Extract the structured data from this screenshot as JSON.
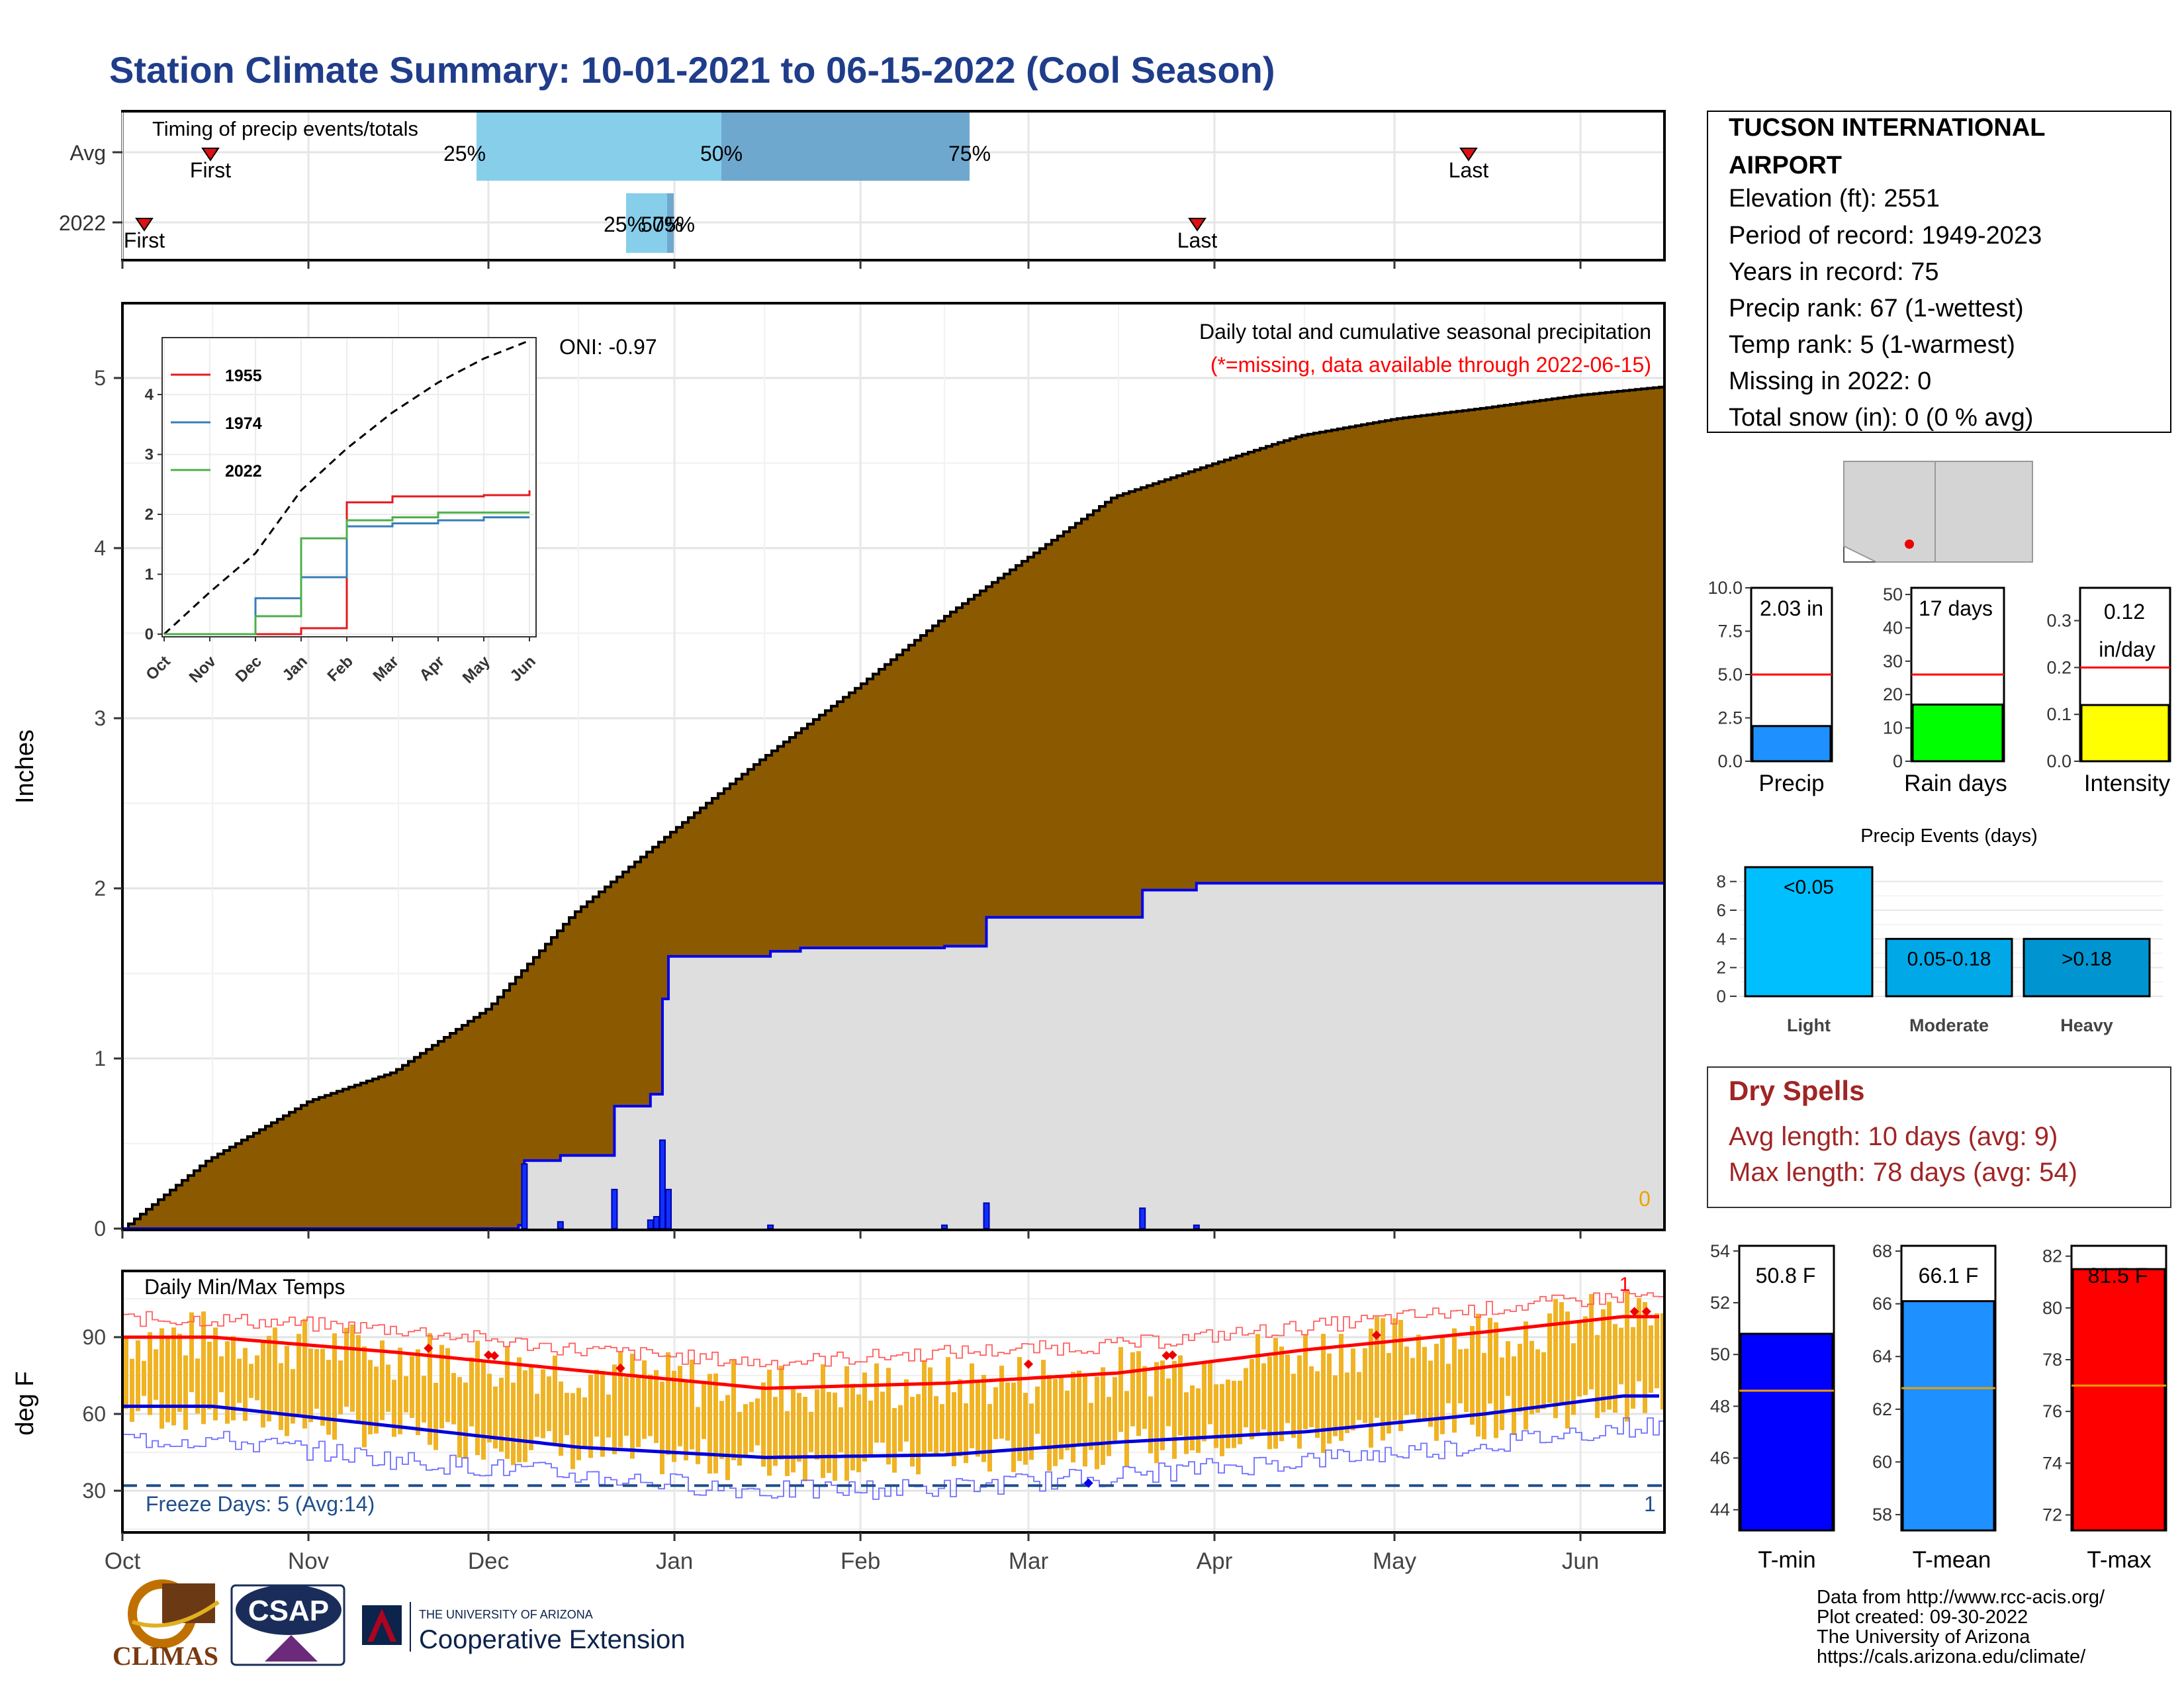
{
  "title": "Station Climate Summary: 10-01-2021 to 06-15-2022 (Cool Season)",
  "timing_panel": {
    "label": "Timing of precip events/totals",
    "rows": [
      "Avg",
      "2022"
    ],
    "avg": {
      "first_label": "First",
      "last_label": "Last",
      "p25_label": "25%",
      "p50_label": "50%",
      "p75_label": "75%"
    },
    "y2022": {
      "first_label": "First",
      "last_label": "Last",
      "p25_label": "25%",
      "p50_label": "50%",
      "p75_label": "75%"
    },
    "colors": {
      "light": "#87ceeb",
      "dark": "#6fa8cf",
      "marker": "#e01010"
    }
  },
  "station": {
    "name": "TUCSON INTERNATIONAL AIRPORT",
    "elevation": "Elevation (ft): 2551",
    "period": "Period of record: 1949-2023",
    "years": "Years in record: 75",
    "precip_rank": "Precip rank: 67 (1-wettest)",
    "temp_rank": "Temp rank: 5 (1-warmest)",
    "missing": "Missing in 2022: 0",
    "snow": "Total snow (in): 0 (0 % avg)"
  },
  "precip_panel": {
    "ylabel": "Inches",
    "yticks": [
      "0",
      "1",
      "2",
      "3",
      "4",
      "5"
    ],
    "note1": "Daily total and cumulative seasonal precipitation",
    "note2": "(*=missing, data available through 2022-06-15)",
    "oni": "ONI: -0.97",
    "zero_label": "0",
    "colors": {
      "avg_fill": "#8b5a00",
      "year_fill": "#dedede",
      "year_line": "#0000ee"
    }
  },
  "inset": {
    "xticks": [
      "Oct",
      "Nov",
      "Dec",
      "Jan",
      "Feb",
      "Mar",
      "Apr",
      "May",
      "Jun"
    ],
    "yticks": [
      "0",
      "1",
      "2",
      "3",
      "4"
    ],
    "legend": [
      "1955",
      "1974",
      "2022"
    ],
    "colors": {
      "1955": "#e41a1c",
      "1974": "#377eb8",
      "2022": "#4daf4a"
    }
  },
  "temp_panel": {
    "label": "Daily Min/Max Temps",
    "ylabel": "deg F",
    "yticks": [
      "30",
      "60",
      "90"
    ],
    "freeze": "Freeze Days: 5 (Avg:14)",
    "left_count": "1",
    "right_count": "1",
    "colors": {
      "bars": "#f0b323",
      "max_avg": "#ff0000",
      "min_avg": "#0000dd",
      "freeze": "#1f4e8c"
    }
  },
  "month_ticks": [
    "Oct",
    "Nov",
    "Dec",
    "Jan",
    "Feb",
    "Mar",
    "Apr",
    "May",
    "Jun"
  ],
  "mini_bars": {
    "precip": {
      "label": "Precip",
      "value_text": "2.03 in",
      "yticks": [
        "0.0",
        "2.5",
        "5.0",
        "7.5",
        "10.0"
      ],
      "color": "#1e90ff"
    },
    "rain_days": {
      "label": "Rain days",
      "value_text": "17 days",
      "yticks": [
        "0",
        "10",
        "20",
        "30",
        "40",
        "50"
      ],
      "color": "#00ff00"
    },
    "intensity": {
      "label": "Intensity",
      "value_text_1": "0.12",
      "value_text_2": "in/day",
      "yticks": [
        "0.0",
        "0.1",
        "0.2",
        "0.3"
      ],
      "color": "#ffff00"
    }
  },
  "events": {
    "title": "Precip Events (days)",
    "yticks": [
      "0",
      "2",
      "4",
      "6",
      "8"
    ],
    "categories": [
      "Light",
      "Moderate",
      "Heavy"
    ],
    "bar_labels": [
      "<0.05",
      "0.05-0.18",
      ">0.18"
    ],
    "colors": [
      "#00bfff",
      "#00a8e8",
      "#0095d0"
    ]
  },
  "dry_spells": {
    "title": "Dry Spells",
    "avg": "Avg length: 10 days (avg: 9)",
    "max": "Max length: 78 days (avg: 54)",
    "color": "#a02525"
  },
  "temp_bars": {
    "tmin": {
      "label": "T-min",
      "value_text": "50.8 F",
      "yticks": [
        "44",
        "46",
        "48",
        "50",
        "52",
        "54"
      ],
      "color": "#0000ff"
    },
    "tmean": {
      "label": "T-mean",
      "value_text": "66.1 F",
      "yticks": [
        "58",
        "60",
        "62",
        "64",
        "66",
        "68"
      ],
      "color": "#1e90ff"
    },
    "tmax": {
      "label": "T-max",
      "value_text": "81.5 F",
      "yticks": [
        "72",
        "74",
        "76",
        "78",
        "80",
        "82"
      ],
      "color": "#ff0000"
    }
  },
  "footer": {
    "line1": "Data from http://www.rcc-acis.org/",
    "line2": "Plot created: 09-30-2022",
    "line3": "The University of Arizona",
    "line4": "https://cals.arizona.edu/climate/",
    "logo_climas": "CLIMAS",
    "logo_csap": "CSAP",
    "logo_ua_small": "THE UNIVERSITY OF ARIZONA",
    "logo_ua_big": "Cooperative Extension"
  },
  "chart_data": [
    {
      "type": "area",
      "title": "Daily total and cumulative seasonal precipitation",
      "ylabel": "Inches",
      "x_range": [
        "2021-10-01",
        "2022-06-15"
      ],
      "ylim": [
        0,
        5.5
      ],
      "series": [
        {
          "name": "Avg",
          "x": [
            "2021-10-01",
            "2021-10-15",
            "2021-11-01",
            "2021-11-15",
            "2021-12-01",
            "2021-12-15",
            "2022-01-01",
            "2022-01-15",
            "2022-02-01",
            "2022-02-15",
            "2022-03-01",
            "2022-03-15",
            "2022-04-01",
            "2022-04-15",
            "2022-05-01",
            "2022-05-15",
            "2022-06-01",
            "2022-06-15"
          ],
          "values": [
            0.0,
            0.4,
            0.75,
            0.92,
            1.3,
            1.85,
            2.35,
            2.75,
            3.2,
            3.6,
            3.95,
            4.3,
            4.5,
            4.66,
            4.76,
            4.82,
            4.9,
            4.95
          ]
        },
        {
          "name": "2022",
          "x": [
            "2021-10-01",
            "2021-12-06",
            "2021-12-07",
            "2021-12-13",
            "2021-12-22",
            "2021-12-28",
            "2021-12-30",
            "2021-12-31",
            "2022-01-17",
            "2022-01-22",
            "2022-02-15",
            "2022-02-22",
            "2022-03-20",
            "2022-03-29",
            "2022-06-15"
          ],
          "values": [
            0.0,
            0.02,
            0.4,
            0.43,
            0.72,
            0.79,
            1.35,
            1.6,
            1.63,
            1.65,
            1.66,
            1.83,
            1.99,
            2.03,
            2.03
          ]
        }
      ],
      "daily_bars": {
        "x": [
          "2021-12-07",
          "2021-12-13",
          "2021-12-22",
          "2021-12-28",
          "2021-12-29",
          "2021-12-30",
          "2021-12-31",
          "2022-01-17",
          "2022-02-15",
          "2022-02-22",
          "2022-03-20",
          "2022-03-29"
        ],
        "values": [
          0.38,
          0.04,
          0.23,
          0.05,
          0.07,
          0.52,
          0.23,
          0.02,
          0.02,
          0.15,
          0.12,
          0.02
        ]
      }
    },
    {
      "type": "line",
      "title": "",
      "x_categories": [
        "Oct",
        "Nov",
        "Dec",
        "Jan",
        "Feb",
        "Mar",
        "Apr",
        "May",
        "Jun"
      ],
      "ylim": [
        0,
        5.3
      ],
      "series": [
        {
          "name": "",
          "values": [
            0.0,
            0.7,
            1.35,
            2.4,
            3.1,
            3.7,
            4.2,
            4.6,
            4.9
          ]
        },
        {
          "name": "1955",
          "values": [
            0.0,
            0.0,
            0.0,
            0.1,
            2.2,
            2.3,
            2.3,
            2.32,
            2.4
          ]
        },
        {
          "name": "1974",
          "values": [
            0.0,
            0.0,
            0.6,
            0.95,
            1.8,
            1.85,
            1.9,
            1.95,
            1.95
          ]
        },
        {
          "name": "2022",
          "values": [
            0.0,
            0.0,
            0.3,
            1.6,
            1.9,
            1.95,
            2.03,
            2.03,
            2.03
          ]
        }
      ]
    },
    {
      "type": "line",
      "title": "Daily Min/Max Temps",
      "ylabel": "deg F",
      "x_categories": [
        "Oct",
        "Nov",
        "Dec",
        "Jan",
        "Feb",
        "Mar",
        "Apr",
        "May",
        "Jun"
      ],
      "ylim": [
        12,
        115
      ],
      "series": [
        {
          "name": "",
          "values": [
            90,
            84,
            77,
            70,
            72,
            76,
            85,
            92,
            98
          ]
        },
        {
          "name": "",
          "values": [
            63,
            55,
            47,
            43,
            44,
            49,
            53,
            60,
            67
          ]
        },
        {
          "name": "",
          "values": [
            97,
            93,
            85,
            80,
            84,
            87,
            94,
            101,
            106
          ]
        },
        {
          "name": "",
          "values": [
            50,
            42,
            36,
            30,
            31,
            36,
            42,
            48,
            55
          ]
        }
      ],
      "freeze_line": 32
    },
    {
      "type": "bar",
      "title": "",
      "categories": [
        "Precip",
        "Rain days",
        "Intensity"
      ],
      "series": [
        {
          "name": "",
          "values": [
            2.03,
            17,
            0.12
          ]
        },
        {
          "name": "",
          "values": [
            5.0,
            26,
            0.2
          ]
        }
      ]
    },
    {
      "type": "bar",
      "title": "Precip Events (days)",
      "categories": [
        "Light",
        "Moderate",
        "Heavy"
      ],
      "values": [
        9,
        4,
        4
      ],
      "ylim": [
        0,
        9
      ]
    },
    {
      "type": "bar",
      "title": "",
      "categories": [
        "T-min",
        "T-mean",
        "T-max"
      ],
      "series": [
        {
          "name": "",
          "values": [
            50.8,
            66.1,
            81.5
          ]
        },
        {
          "name": "",
          "values": [
            48.6,
            62.8,
            77.0
          ]
        }
      ]
    }
  ]
}
